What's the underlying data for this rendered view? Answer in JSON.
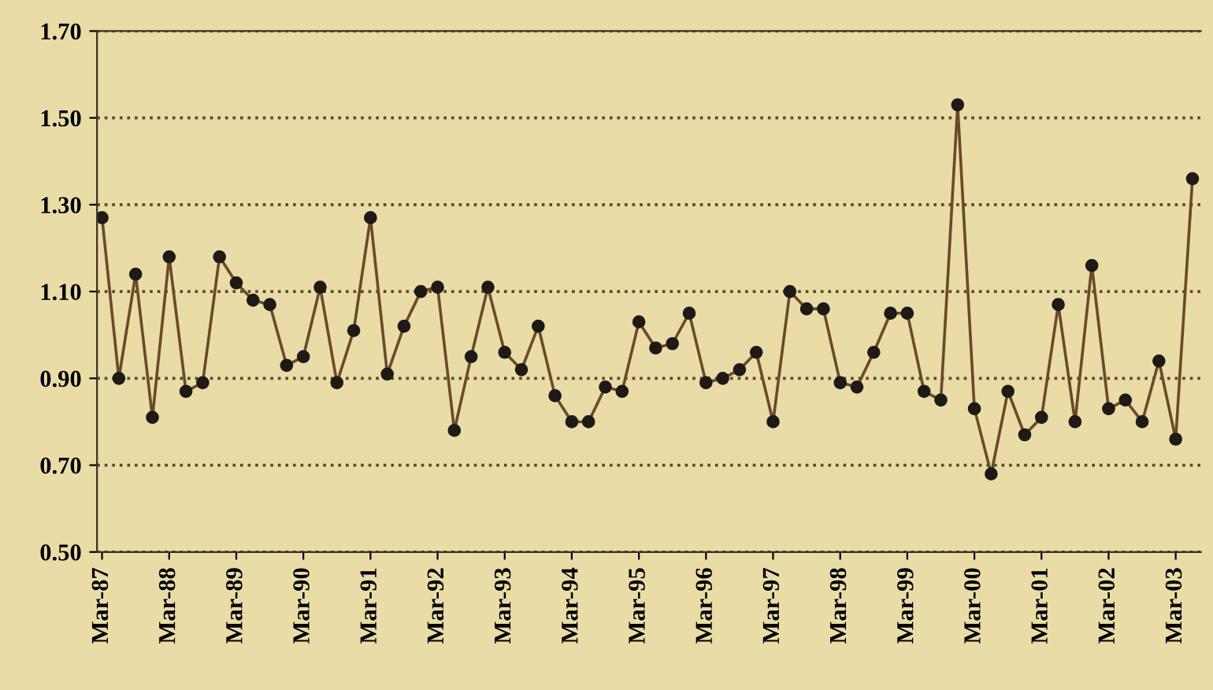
{
  "chart_data": {
    "type": "line",
    "categories": [
      "Mar-87",
      null,
      null,
      null,
      "Mar-88",
      null,
      null,
      null,
      "Mar-89",
      null,
      null,
      null,
      "Mar-90",
      null,
      null,
      null,
      "Mar-91",
      null,
      null,
      null,
      "Mar-92",
      null,
      null,
      null,
      "Mar-93",
      null,
      null,
      null,
      "Mar-94",
      null,
      null,
      null,
      "Mar-95",
      null,
      null,
      null,
      "Mar-96",
      null,
      null,
      null,
      "Mar-97",
      null,
      null,
      null,
      "Mar-98",
      null,
      null,
      null,
      "Mar-99",
      null,
      null,
      null,
      "Mar-00",
      null,
      null,
      null,
      "Mar-01",
      null,
      null,
      null,
      "Mar-02",
      null,
      null,
      null,
      "Mar-03",
      null
    ],
    "series": [
      {
        "color": "#6b4a2a",
        "values": [
          1.27,
          0.9,
          1.14,
          0.81,
          1.18,
          0.87,
          0.89,
          1.18,
          1.12,
          1.08,
          1.07,
          0.93,
          0.95,
          1.11,
          0.89,
          1.01,
          1.27,
          0.91,
          1.02,
          1.1,
          1.11,
          0.78,
          0.95,
          1.11,
          0.96,
          0.92,
          1.02,
          0.86,
          0.8,
          0.8,
          0.88,
          0.87,
          1.03,
          0.97,
          0.98,
          1.05,
          0.89,
          0.9,
          0.92,
          0.96,
          0.8,
          1.1,
          1.06,
          1.06,
          0.89,
          0.88,
          0.96,
          1.05,
          1.05,
          0.87,
          0.85,
          1.53,
          0.83,
          0.68,
          0.87,
          0.77,
          0.81,
          1.07,
          0.8,
          1.16,
          0.83,
          0.85,
          0.8,
          0.94,
          0.76,
          1.36
        ]
      }
    ],
    "ylim": [
      0.5,
      1.7
    ],
    "yticks": [
      {
        "value": 0.5,
        "label": "0.50"
      },
      {
        "value": 0.7,
        "label": "0.70"
      },
      {
        "value": 0.9,
        "label": "0.90"
      },
      {
        "value": 1.1,
        "label": "1.10"
      },
      {
        "value": 1.3,
        "label": "1.30"
      },
      {
        "value": 1.5,
        "label": "1.50"
      },
      {
        "value": 1.7,
        "label": "1.70"
      }
    ],
    "grid": "y",
    "marker": "circle",
    "line_style": "solid"
  }
}
